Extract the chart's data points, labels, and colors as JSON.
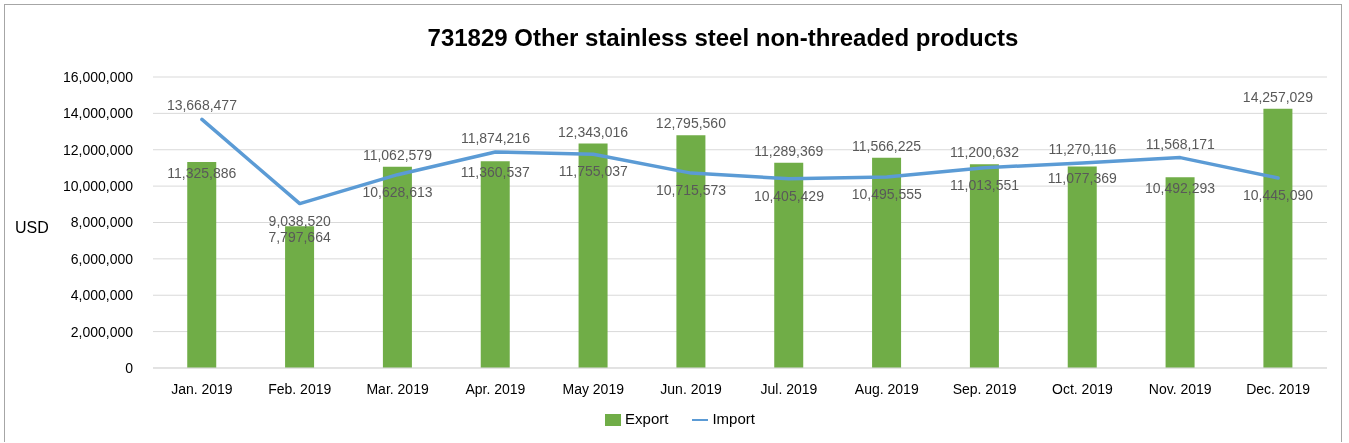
{
  "chart_data": {
    "type": "bar",
    "title": "731829 Other stainless steel non-threaded products",
    "ylabel": "USD",
    "categories": [
      "Jan. 2019",
      "Feb. 2019",
      "Mar. 2019",
      "Apr. 2019",
      "May 2019",
      "Jun. 2019",
      "Jul. 2019",
      "Aug. 2019",
      "Sep. 2019",
      "Oct. 2019",
      "Nov. 2019",
      "Dec. 2019"
    ],
    "series": [
      {
        "name": "Export",
        "color": "#70ad47",
        "values": [
          11325886,
          7797664,
          11062579,
          11360537,
          12343016,
          12795560,
          11289369,
          11566225,
          11200632,
          11077369,
          10492293,
          14257029
        ],
        "value_labels": [
          "11,325,886",
          "7,797,664",
          "11,062,579",
          "11,360,537",
          "12,343,016",
          "12,795,560",
          "11,289,369",
          "11,566,225",
          "11,200,632",
          "11,077,369",
          "10,492,293",
          "14,257,029"
        ]
      },
      {
        "name": "Import",
        "type": "line",
        "color": "#5b9bd5",
        "values": [
          13668477,
          9038520,
          10628613,
          11874216,
          11755037,
          10715573,
          10405429,
          10495555,
          11013551,
          11270116,
          11568171,
          10445090
        ],
        "value_labels": [
          "13,668,477",
          "9,038,520",
          "10,628,613",
          "11,874,216",
          "11,755,037",
          "10,715,573",
          "10,405,429",
          "10,495,555",
          "11,013,551",
          "11,270,116",
          "11,568,171",
          "10,445,090"
        ]
      }
    ],
    "ylim": [
      0,
      16000000
    ],
    "yticks": [
      {
        "value": 0,
        "label": "0"
      },
      {
        "value": 2000000,
        "label": "2,000,000"
      },
      {
        "value": 4000000,
        "label": "4,000,000"
      },
      {
        "value": 6000000,
        "label": "6,000,000"
      },
      {
        "value": 8000000,
        "label": "8,000,000"
      },
      {
        "value": 10000000,
        "label": "10,000,000"
      },
      {
        "value": 12000000,
        "label": "12,000,000"
      },
      {
        "value": 14000000,
        "label": "14,000,000"
      },
      {
        "value": 16000000,
        "label": "16,000,000"
      }
    ],
    "grid": "y",
    "legend": "bottom",
    "marker": "none",
    "line_style": "solid"
  }
}
